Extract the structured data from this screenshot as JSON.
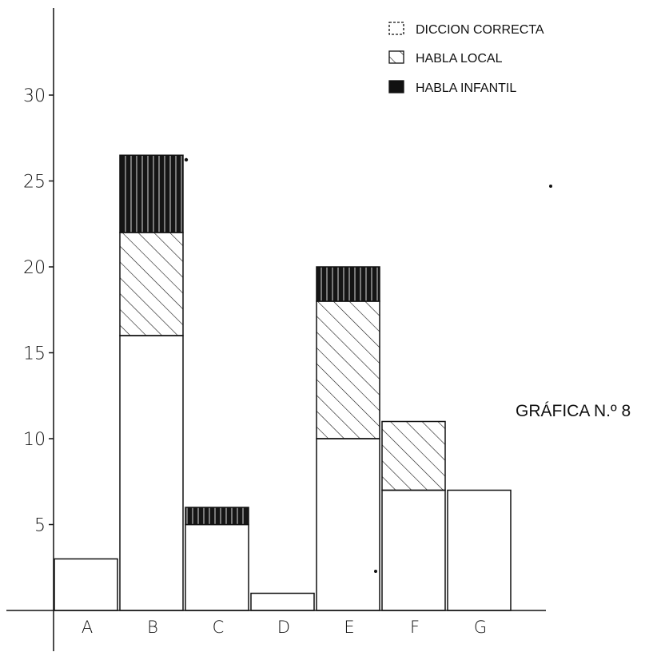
{
  "chart_data": {
    "type": "bar",
    "stacked": true,
    "title": "GRÁFICA N.º 8",
    "categories": [
      "A",
      "B",
      "C",
      "D",
      "E",
      "F",
      "G"
    ],
    "series": [
      {
        "name": "DICCION CORRECTA",
        "pattern": "blank",
        "values": [
          3,
          16,
          5,
          1,
          10,
          7,
          7
        ]
      },
      {
        "name": "HABLA LOCAL",
        "pattern": "hatch",
        "values": [
          0,
          6,
          0,
          0,
          8,
          4,
          0
        ]
      },
      {
        "name": "HABLA INFANTIL",
        "pattern": "solid",
        "values": [
          0,
          4.5,
          1,
          0,
          2,
          0,
          0
        ]
      }
    ],
    "yticks": [
      "5",
      "10",
      "15",
      "20",
      "25",
      "30"
    ],
    "ylim": [
      0,
      30
    ],
    "grid": false,
    "legend_position": "top-right",
    "colors": {
      "ink": "#111111",
      "background": "#ffffff"
    }
  }
}
